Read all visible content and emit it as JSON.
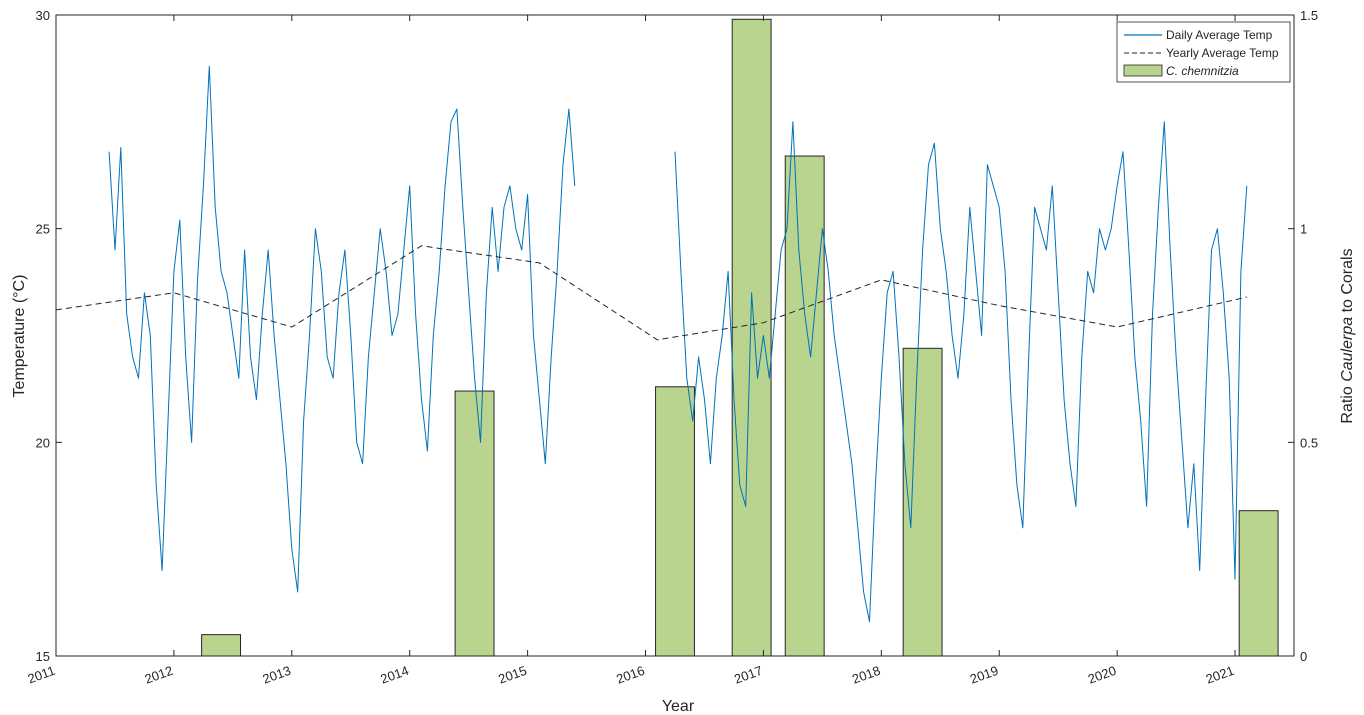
{
  "chart_data": {
    "type": "line",
    "xlabel": "Year",
    "ylabel_left": "Temperature (°C)",
    "ylabel_right": {
      "pre": "Ratio ",
      "italic": "Caulerpa",
      "post": " to Corals"
    },
    "xlim": [
      2011,
      2021.5
    ],
    "ylim_left": [
      15,
      30
    ],
    "ylim_right": [
      0,
      1.5
    ],
    "x_ticks": [
      "2011",
      "2012",
      "2013",
      "2014",
      "2015",
      "2016",
      "2017",
      "2018",
      "2019",
      "2020",
      "2021"
    ],
    "y_ticks_left": [
      "15",
      "20",
      "25",
      "30"
    ],
    "y_ticks_right": [
      "0",
      "0.5",
      "1",
      "1.5"
    ],
    "grid": false,
    "legend_position": "top-right",
    "legend": [
      "Daily Average Temp",
      "Yearly Average Temp",
      "C. chemnitzia"
    ],
    "colors": {
      "daily": "#0072BD",
      "yearly": "#262626",
      "bars": "#B8D48F",
      "bar_edge": "#262626"
    },
    "series": [
      {
        "name": "Daily Average Temp",
        "axis": "left",
        "style": "solid",
        "segments": [
          {
            "x": [
              2011.45,
              2011.5,
              2011.55,
              2011.6,
              2011.65,
              2011.7,
              2011.75,
              2011.8,
              2011.85,
              2011.9,
              2011.95,
              2012.0,
              2012.05,
              2012.1,
              2012.15,
              2012.2,
              2012.25,
              2012.3,
              2012.35,
              2012.4,
              2012.45,
              2012.5,
              2012.55,
              2012.6,
              2012.65,
              2012.7,
              2012.75,
              2012.8,
              2012.85,
              2012.9,
              2012.95,
              2013.0,
              2013.05,
              2013.1,
              2013.15,
              2013.2,
              2013.25,
              2013.3,
              2013.35,
              2013.4,
              2013.45,
              2013.5,
              2013.55,
              2013.6,
              2013.65,
              2013.7,
              2013.75,
              2013.8,
              2013.85,
              2013.9,
              2013.95,
              2014.0,
              2014.05,
              2014.1,
              2014.15,
              2014.2,
              2014.25,
              2014.3,
              2014.35,
              2014.4,
              2014.45,
              2014.5,
              2014.55,
              2014.6,
              2014.65,
              2014.7,
              2014.75,
              2014.8,
              2014.85,
              2014.9,
              2014.95,
              2015.0,
              2015.05,
              2015.1,
              2015.15,
              2015.2,
              2015.25,
              2015.3,
              2015.35,
              2015.4
            ],
            "y": [
              26.8,
              24.5,
              26.9,
              23.0,
              22.0,
              21.5,
              23.5,
              22.5,
              19.0,
              17.0,
              20.5,
              24.0,
              25.2,
              22.0,
              20.0,
              23.8,
              26.0,
              28.8,
              25.5,
              24.0,
              23.5,
              22.5,
              21.5,
              24.5,
              22.0,
              21.0,
              23.0,
              24.5,
              22.5,
              21.0,
              19.5,
              17.5,
              16.5,
              20.5,
              22.5,
              25.0,
              24.0,
              22.0,
              21.5,
              23.5,
              24.5,
              22.5,
              20.0,
              19.5,
              22.0,
              23.5,
              25.0,
              24.0,
              22.5,
              23.0,
              24.5,
              26.0,
              23.0,
              21.0,
              19.8,
              22.5,
              24.0,
              26.0,
              27.5,
              27.8,
              25.5,
              23.5,
              21.5,
              20.0,
              23.5,
              25.5,
              24.0,
              25.5,
              26.0,
              25.0,
              24.5,
              25.8,
              22.5,
              21.0,
              19.5,
              22.0,
              24.0,
              26.5,
              27.8,
              26.0
            ]
          },
          {
            "x": [
              2016.25,
              2016.3,
              2016.35,
              2016.4,
              2016.45,
              2016.5,
              2016.55,
              2016.6,
              2016.65,
              2016.7,
              2016.75,
              2016.8,
              2016.85,
              2016.9,
              2016.95,
              2017.0,
              2017.05,
              2017.1,
              2017.15,
              2017.2,
              2017.25,
              2017.3,
              2017.35,
              2017.4,
              2017.45,
              2017.5,
              2017.55,
              2017.6,
              2017.65,
              2017.7,
              2017.75,
              2017.8,
              2017.85,
              2017.9,
              2017.95,
              2018.0,
              2018.05,
              2018.1,
              2018.15,
              2018.2,
              2018.25,
              2018.3,
              2018.35,
              2018.4,
              2018.45,
              2018.5,
              2018.55,
              2018.6,
              2018.65,
              2018.7,
              2018.75,
              2018.8,
              2018.85,
              2018.9,
              2018.95,
              2019.0,
              2019.05,
              2019.1,
              2019.15,
              2019.2,
              2019.25,
              2019.3,
              2019.35,
              2019.4,
              2019.45,
              2019.5,
              2019.55,
              2019.6,
              2019.65,
              2019.7,
              2019.75,
              2019.8,
              2019.85,
              2019.9,
              2019.95,
              2020.0,
              2020.05,
              2020.1,
              2020.15,
              2020.2,
              2020.25,
              2020.3,
              2020.35,
              2020.4,
              2020.45,
              2020.5,
              2020.55,
              2020.6,
              2020.65,
              2020.7,
              2020.75,
              2020.8,
              2020.85,
              2020.9,
              2020.95,
              2021.0,
              2021.05,
              2021.1
            ],
            "y": [
              26.8,
              24.0,
              21.5,
              20.5,
              22.0,
              21.0,
              19.5,
              21.5,
              22.5,
              24.0,
              21.0,
              19.0,
              18.5,
              23.5,
              21.5,
              22.5,
              21.5,
              23.0,
              24.5,
              25.0,
              27.5,
              24.5,
              23.0,
              22.0,
              23.5,
              25.0,
              24.0,
              22.5,
              21.5,
              20.5,
              19.5,
              18.0,
              16.5,
              15.8,
              19.0,
              21.5,
              23.5,
              24.0,
              22.0,
              19.5,
              18.0,
              21.5,
              24.5,
              26.5,
              27.0,
              25.0,
              24.0,
              22.5,
              21.5,
              23.0,
              25.5,
              24.0,
              22.5,
              26.5,
              26.0,
              25.5,
              24.0,
              21.0,
              19.0,
              18.0,
              22.0,
              25.5,
              25.0,
              24.5,
              26.0,
              23.5,
              21.0,
              19.5,
              18.5,
              22.0,
              24.0,
              23.5,
              25.0,
              24.5,
              25.0,
              26.0,
              26.8,
              24.5,
              22.0,
              20.5,
              18.5,
              23.0,
              25.5,
              27.5,
              24.5,
              22.0,
              20.0,
              18.0,
              19.5,
              17.0,
              21.0,
              24.5,
              25.0,
              23.5,
              21.5,
              16.8,
              24.0,
              26.0
            ]
          }
        ]
      },
      {
        "name": "Yearly Average Temp",
        "axis": "left",
        "style": "dashed",
        "x": [
          2011.0,
          2012.0,
          2013.0,
          2014.1,
          2015.1,
          2016.1,
          2017.0,
          2018.0,
          2019.0,
          2020.0,
          2021.1
        ],
        "y": [
          23.1,
          23.5,
          22.7,
          24.6,
          24.2,
          22.4,
          22.8,
          23.8,
          23.2,
          22.7,
          23.4
        ]
      },
      {
        "name": "C. chemnitzia",
        "axis": "right",
        "type": "bar",
        "x": [
          2012.4,
          2014.55,
          2016.25,
          2016.9,
          2017.35,
          2018.35,
          2021.2
        ],
        "width": 0.33,
        "values": [
          0.05,
          0.62,
          0.63,
          1.49,
          1.17,
          0.72,
          0.34
        ]
      }
    ]
  }
}
